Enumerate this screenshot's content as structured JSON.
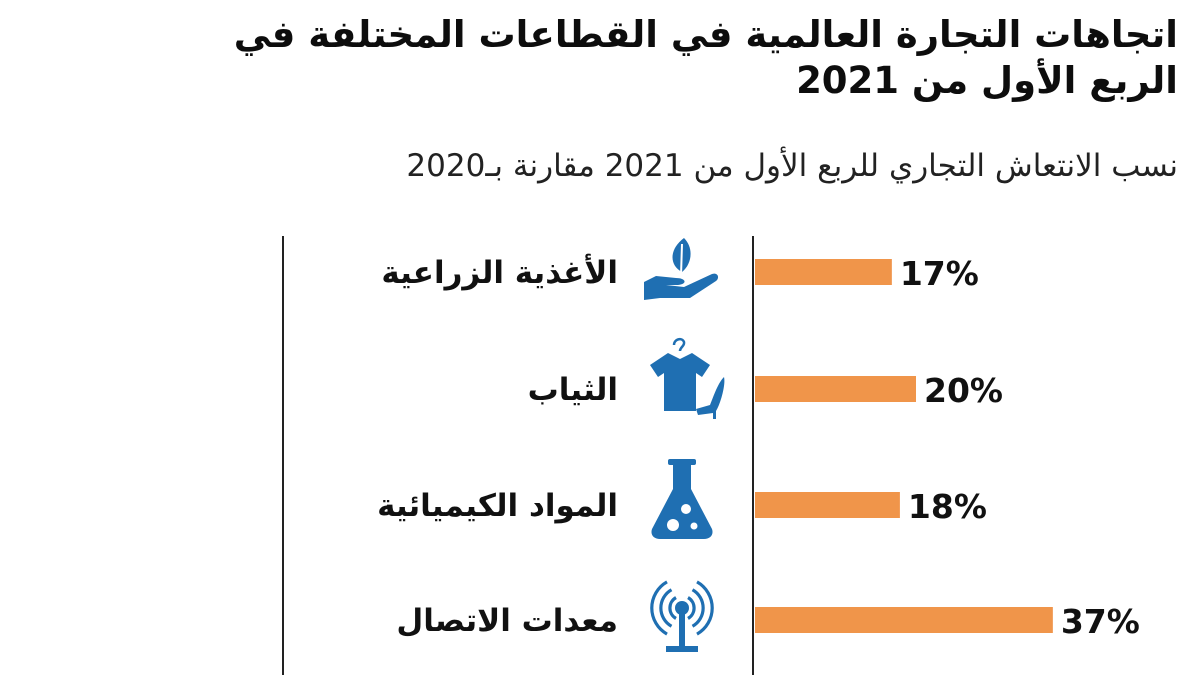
{
  "chart_data": {
    "type": "bar",
    "orientation": "horizontal",
    "title": "اتجاهات التجارة العالمية في القطاعات المختلفة في الربع الأول من 2021",
    "subtitle": "نسب الانتعاش التجاري للربع الأول من 2021 مقارنة بـ2020",
    "categories": [
      "الأغذية الزراعية",
      "الثياب",
      "المواد الكيميائية",
      "معدات الاتصال"
    ],
    "icons": [
      "plant-in-hand-icon",
      "shirt-and-heel-icon",
      "flask-icon",
      "antenna-icon"
    ],
    "values": [
      17,
      20,
      18,
      37
    ],
    "value_labels": [
      "17%",
      "20%",
      "18%",
      "37%"
    ],
    "unit": "%",
    "xlim": [
      0,
      40
    ],
    "grid": false
  },
  "colors": {
    "bar": "#f0954a",
    "icon": "#1f6fb2",
    "text": "#111111",
    "axis": "#222222"
  }
}
